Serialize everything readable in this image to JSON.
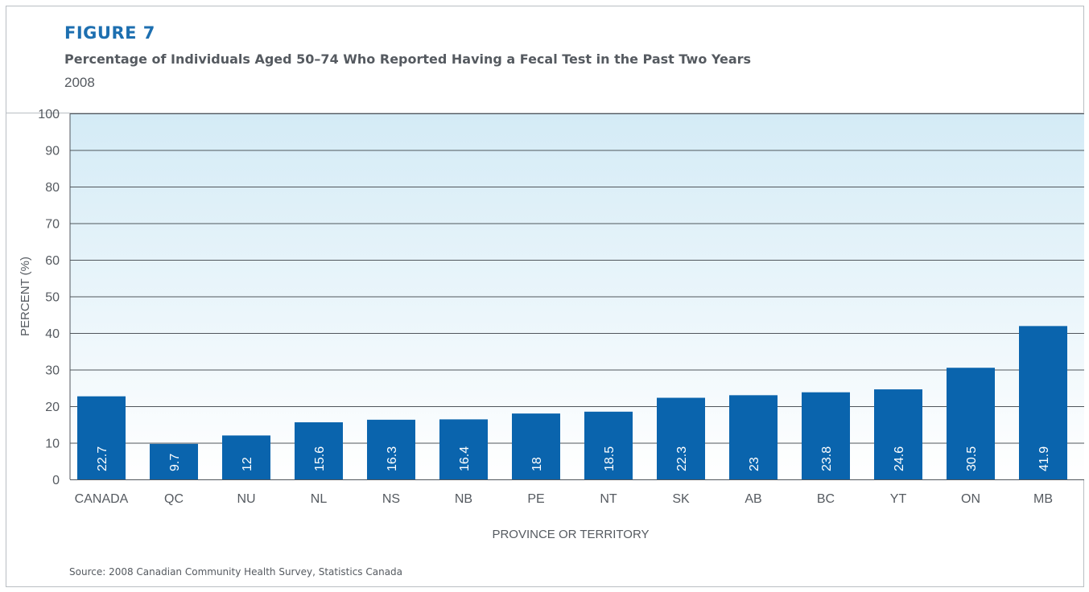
{
  "figure": {
    "label": "FIGURE 7",
    "title": "Percentage of Individuals Aged 50–74 Who Reported Having a Fecal Test in the Past Two Years",
    "subtitle": "2008",
    "source": "Source: 2008 Canadian Community Health Survey, Statistics Canada"
  },
  "colors": {
    "bar": "#0a64ad",
    "plot_bg_top": "#d4ebf6",
    "plot_bg_bottom": "#ffffff",
    "gridline": "#50565c",
    "heading": "#1d6fb0",
    "text": "#555a60"
  },
  "chart_data": {
    "type": "bar",
    "categories": [
      "CANADA",
      "QC",
      "NU",
      "NL",
      "NS",
      "NB",
      "PE",
      "NT",
      "SK",
      "AB",
      "BC",
      "YT",
      "ON",
      "MB"
    ],
    "values": [
      22.7,
      9.7,
      12,
      15.6,
      16.3,
      16.4,
      18,
      18.5,
      22.3,
      23,
      23.8,
      24.6,
      30.5,
      41.9
    ],
    "value_labels": [
      "22.7",
      "9.7",
      "12",
      "15.6",
      "16.3",
      "16.4",
      "18",
      "18.5",
      "22.3",
      "23",
      "23.8",
      "24.6",
      "30.5",
      "41.9"
    ],
    "xlabel": "PROVINCE OR TERRITORY",
    "ylabel": "PERCENT (%)",
    "ylim": [
      0,
      100
    ],
    "yticks": [
      0,
      10,
      20,
      30,
      40,
      50,
      60,
      70,
      80,
      90,
      100
    ],
    "ytick_labels": [
      "0",
      "10",
      "20",
      "30",
      "40",
      "50",
      "60",
      "70",
      "80",
      "90",
      "100"
    ],
    "grid": true,
    "legend": "none"
  }
}
